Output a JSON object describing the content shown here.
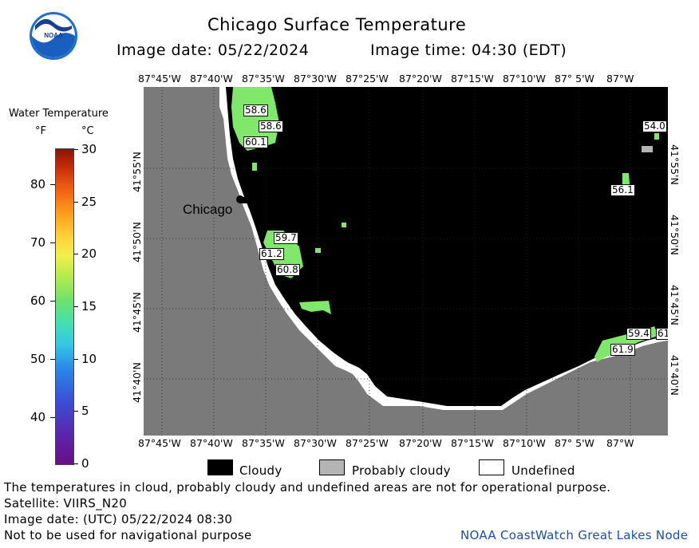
{
  "title": "Chicago Surface Temperature",
  "image_date_label": "Image date: 05/22/2024",
  "image_time_label": "Image time: 04:30 (EDT)",
  "colorbar": {
    "title": "Water Temperature",
    "unit_f": "°F",
    "unit_c": "°C",
    "f_ticks": [
      "80",
      "70",
      "60",
      "50",
      "40"
    ],
    "c_ticks": [
      "30",
      "25",
      "20",
      "15",
      "10",
      "5",
      "0"
    ]
  },
  "lon_labels": [
    "87°45'W",
    "87°40'W",
    "87°35'W",
    "87°30'W",
    "87°25'W",
    "87°20'W",
    "87°15'W",
    "87°10'W",
    "87° 5'W",
    "87°W"
  ],
  "lat_labels": [
    "41°55'N",
    "41°50'N",
    "41°45'N",
    "41°40'N"
  ],
  "city_label": "Chicago",
  "temperature_labels": [
    "58.6",
    "58.6",
    "60.1",
    "59.7",
    "61.2",
    "60.8",
    "54.0",
    "56.1",
    "59.4",
    "61.9",
    "61"
  ],
  "legend": {
    "cloudy": "Cloudy",
    "probably_cloudy": "Probably cloudy",
    "undefined": "Undefined"
  },
  "footer": {
    "note": "The temperatures in cloud, probably cloudy and undefined areas are not for operational purpose.",
    "satellite": "Satellite: VIIRS_N20",
    "utc_date": "Image date: (UTC) 05/22/2024  08:30",
    "nav_warning": "Not to be used for navigational purpose",
    "credit": "NOAA CoastWatch Great Lakes Node"
  },
  "colors": {
    "land": "#7a7a7a",
    "cloud": "#000000",
    "probably_cloudy": "#b4b4b4",
    "undefined": "#ffffff",
    "water_warm": "#7fe86a",
    "credit": "#1c4fa8"
  },
  "logo": {
    "text": "NOAA"
  }
}
